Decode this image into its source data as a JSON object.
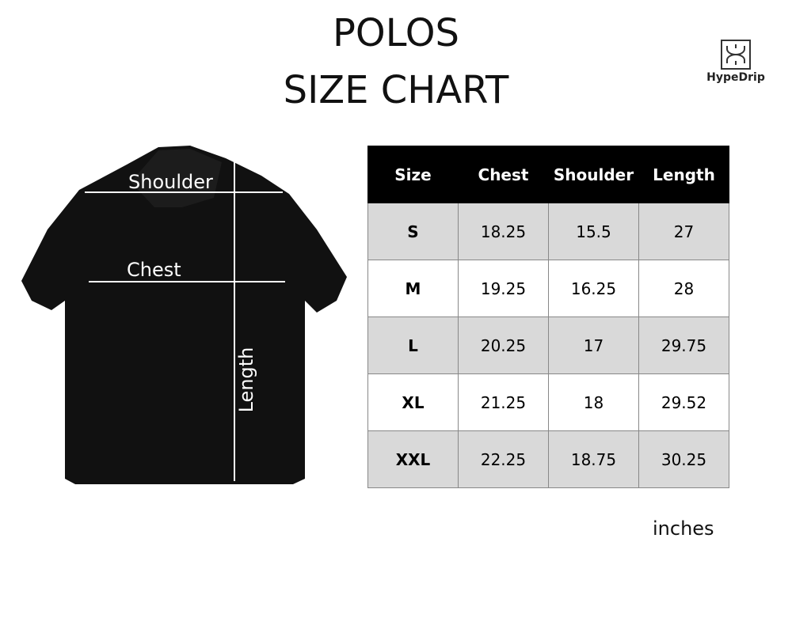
{
  "title_line1": "POLOS",
  "title_line2": "SIZE CHART",
  "logo": {
    "text": "HypeDrip"
  },
  "diagram_labels": {
    "shoulder": "Shoulder",
    "chest": "Chest",
    "length": "Length"
  },
  "table": {
    "headers": [
      "Size",
      "Chest",
      "Shoulder",
      "Length"
    ],
    "rows": [
      [
        "S",
        "18.25",
        "15.5",
        "27"
      ],
      [
        "M",
        "19.25",
        "16.25",
        "28"
      ],
      [
        "L",
        "20.25",
        "17",
        "29.75"
      ],
      [
        "XL",
        "21.25",
        "18",
        "29.52"
      ],
      [
        "XXL",
        "22.25",
        "18.75",
        "30.25"
      ]
    ]
  },
  "unit": "inches",
  "colors": {
    "header_bg": "#000000",
    "stripe": "#d9d9d9",
    "shirt": "#111111"
  }
}
